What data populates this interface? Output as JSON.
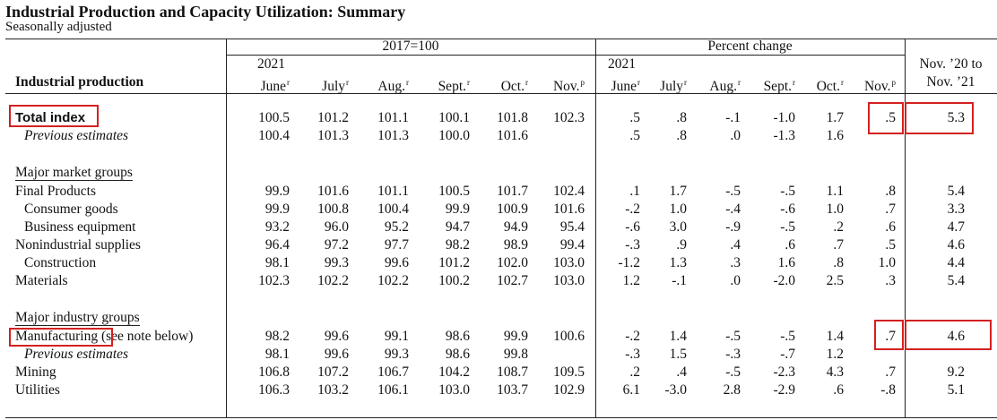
{
  "title": "Industrial Production and Capacity Utilization: Summary",
  "subtitle": "Seasonally adjusted",
  "header": {
    "index_base": "2017=100",
    "pct_label": "Percent change",
    "row_label": "Industrial production",
    "year_left": "2021",
    "year_right": "2021",
    "months_left": [
      {
        "m": "June",
        "s": "r"
      },
      {
        "m": "July",
        "s": "r"
      },
      {
        "m": "Aug.",
        "s": "r"
      },
      {
        "m": "Sept.",
        "s": "r"
      },
      {
        "m": "Oct.",
        "s": "r"
      },
      {
        "m": "Nov.",
        "s": "p"
      }
    ],
    "months_right": [
      {
        "m": "June",
        "s": "r"
      },
      {
        "m": "July",
        "s": "r"
      },
      {
        "m": "Aug.",
        "s": "r"
      },
      {
        "m": "Sept.",
        "s": "r"
      },
      {
        "m": "Oct.",
        "s": "r"
      },
      {
        "m": "Nov.",
        "s": "p"
      }
    ],
    "yoy_line1": "Nov. ’20 to",
    "yoy_line2": "Nov. ’21"
  },
  "sections": {
    "market": "Major market groups",
    "industry": "Major industry groups"
  },
  "rows": [
    {
      "label": "Total index",
      "idx": [
        "100.5",
        "101.2",
        "101.1",
        "100.1",
        "101.8",
        "102.3"
      ],
      "pct": [
        ".5",
        ".8",
        "-.1",
        "-1.0",
        "1.7",
        ".5"
      ],
      "yoy": "5.3"
    },
    {
      "label": "Previous estimates",
      "idx": [
        "100.4",
        "101.3",
        "101.3",
        "100.0",
        "101.6",
        ""
      ],
      "pct": [
        ".5",
        ".8",
        ".0",
        "-1.3",
        "1.6",
        ""
      ],
      "yoy": ""
    },
    {
      "label": "Final Products",
      "idx": [
        "99.9",
        "101.6",
        "101.1",
        "100.5",
        "101.7",
        "102.4"
      ],
      "pct": [
        ".1",
        "1.7",
        "-.5",
        "-.5",
        "1.1",
        ".8"
      ],
      "yoy": "5.4"
    },
    {
      "label": "Consumer goods",
      "idx": [
        "99.9",
        "100.8",
        "100.4",
        "99.9",
        "100.9",
        "101.6"
      ],
      "pct": [
        "-.2",
        "1.0",
        "-.4",
        "-.6",
        "1.0",
        ".7"
      ],
      "yoy": "3.3"
    },
    {
      "label": "Business equipment",
      "idx": [
        "93.2",
        "96.0",
        "95.2",
        "94.7",
        "94.9",
        "95.4"
      ],
      "pct": [
        "-.6",
        "3.0",
        "-.9",
        "-.5",
        ".2",
        ".6"
      ],
      "yoy": "4.7"
    },
    {
      "label": "Nonindustrial supplies",
      "idx": [
        "96.4",
        "97.2",
        "97.7",
        "98.2",
        "98.9",
        "99.4"
      ],
      "pct": [
        "-.3",
        ".9",
        ".4",
        ".6",
        ".7",
        ".5"
      ],
      "yoy": "4.6"
    },
    {
      "label": "Construction",
      "idx": [
        "98.1",
        "99.3",
        "99.6",
        "101.2",
        "102.0",
        "103.0"
      ],
      "pct": [
        "-1.2",
        "1.3",
        ".3",
        "1.6",
        ".8",
        "1.0"
      ],
      "yoy": "4.4"
    },
    {
      "label": "Materials",
      "idx": [
        "102.3",
        "102.2",
        "102.2",
        "100.2",
        "102.7",
        "103.0"
      ],
      "pct": [
        "1.2",
        "-.1",
        ".0",
        "-2.0",
        "2.5",
        ".3"
      ],
      "yoy": "5.4"
    },
    {
      "label": "Manufacturing",
      "note": "(see note below)",
      "idx": [
        "98.2",
        "99.6",
        "99.1",
        "98.6",
        "99.9",
        "100.6"
      ],
      "pct": [
        "-.2",
        "1.4",
        "-.5",
        "-.5",
        "1.4",
        ".7"
      ],
      "yoy": "4.6"
    },
    {
      "label": "Previous estimates",
      "idx": [
        "98.1",
        "99.6",
        "99.3",
        "98.6",
        "99.8",
        ""
      ],
      "pct": [
        "-.3",
        "1.5",
        "-.3",
        "-.7",
        "1.2",
        ""
      ],
      "yoy": ""
    },
    {
      "label": "Mining",
      "idx": [
        "106.8",
        "107.2",
        "106.7",
        "104.2",
        "108.7",
        "109.5"
      ],
      "pct": [
        ".2",
        ".4",
        "-.5",
        "-2.3",
        "4.3",
        ".7"
      ],
      "yoy": "9.2"
    },
    {
      "label": "Utilities",
      "idx": [
        "106.3",
        "103.2",
        "106.1",
        "103.0",
        "103.7",
        "102.9"
      ],
      "pct": [
        "6.1",
        "-3.0",
        "2.8",
        "-2.9",
        ".6",
        "-.8"
      ],
      "yoy": "5.1"
    }
  ],
  "highlight_color": "#d42020"
}
